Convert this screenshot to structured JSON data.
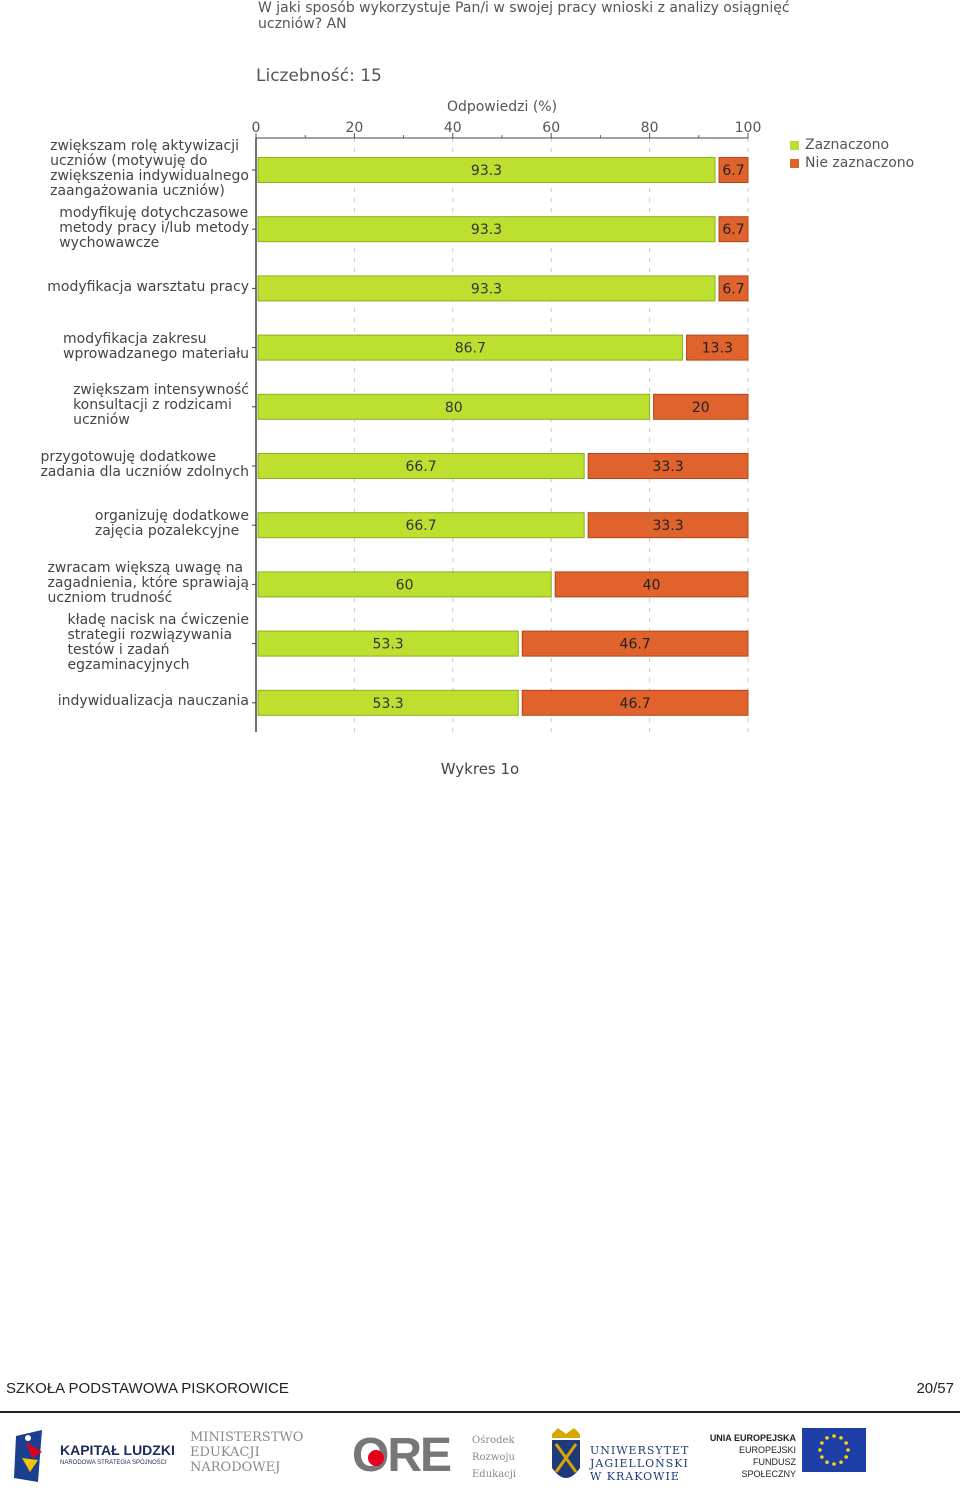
{
  "question": "W jaki sposób wykorzystuje Pan/i w swojej pracy wnioski z analizy osiągnięć uczniów? AN",
  "count_label": "Liczebność: 15",
  "caption": "Wykres 1o",
  "footer": {
    "school": "SZKOŁA PODSTAWOWA PISKOROWICE",
    "page": "20/57"
  },
  "logos": {
    "kapital": "KAPITAŁ LUDZKI",
    "kapital_sub": "NARODOWA STRATEGIA SPÓJNOŚCI",
    "men_1": "MINISTERSTWO",
    "men_2": "EDUKACJI",
    "men_3": "NARODOWEJ",
    "ore": "ORE",
    "ore_1": "Ośrodek",
    "ore_2": "Rozwoju",
    "ore_3": "Edukacji",
    "uj_1": "UNIWERSYTET",
    "uj_2": "JAGIELLOŃSKI",
    "uj_3": "W KRAKOWIE",
    "ue_1": "UNIA EUROPEJSKA",
    "ue_2": "EUROPEJSKI",
    "ue_3": "FUNDUSZ SPOŁECZNY"
  },
  "colors": {
    "selected": "#bde030",
    "selected_border": "#8cb01c",
    "not_selected": "#e0622c",
    "not_selected_border": "#b34418"
  },
  "chart_data": {
    "type": "bar",
    "orientation": "horizontal",
    "stacked": true,
    "xlabel": "Odpowiedzi (%)",
    "xlim": [
      0,
      100
    ],
    "xticks": [
      0,
      20,
      40,
      60,
      80,
      100
    ],
    "legend_position": "top-right",
    "categories": [
      "zwiększam rolę aktywizacji uczniów (motywuję do zwiększenia indywidualnego zaangażowania uczniów)",
      "modyfikuję dotychczasowe metody pracy i/lub metody wychowawcze",
      "modyfikacja warsztatu pracy",
      "modyfikacja zakresu wprowadzanego materiału",
      "zwiększam intensywność konsultacji z rodzicami uczniów",
      "przygotowuję dodatkowe zadania dla uczniów zdolnych",
      "organizuję dodatkowe zajęcia pozalekcyjne",
      "zwracam większą uwagę na zagadnienia, które sprawiają uczniom trudność",
      "kładę nacisk na ćwiczenie strategii rozwiązywania testów i zadań egzaminacyjnych",
      "indywidualizacja nauczania"
    ],
    "category_lines": [
      [
        "zwiększam rolę aktywizacji",
        "uczniów (motywuję do",
        "zwiększenia indywidualnego",
        "zaangażowania uczniów)"
      ],
      [
        "modyfikuję dotychczasowe",
        "metody pracy i/lub metody",
        "wychowawcze"
      ],
      [
        "modyfikacja warsztatu pracy"
      ],
      [
        "modyfikacja zakresu",
        "wprowadzanego materiału"
      ],
      [
        "zwiększam intensywność",
        "konsultacji z rodzicami",
        "uczniów"
      ],
      [
        "przygotowuję dodatkowe",
        "zadania dla uczniów zdolnych"
      ],
      [
        "organizuję dodatkowe",
        "zajęcia pozalekcyjne"
      ],
      [
        "zwracam większą uwagę na",
        "zagadnienia, które sprawiają",
        "uczniom trudność"
      ],
      [
        "kładę nacisk na ćwiczenie",
        "strategii rozwiązywania",
        "testów i zadań",
        "egzaminacyjnych"
      ],
      [
        "indywidualizacja nauczania"
      ]
    ],
    "series": [
      {
        "name": "Zaznaczono",
        "values": [
          93.3,
          93.3,
          93.3,
          86.7,
          80,
          66.7,
          66.7,
          60,
          53.3,
          53.3
        ]
      },
      {
        "name": "Nie zaznaczono",
        "values": [
          6.7,
          6.7,
          6.7,
          13.3,
          20,
          33.3,
          33.3,
          40,
          46.7,
          46.7
        ]
      }
    ]
  }
}
